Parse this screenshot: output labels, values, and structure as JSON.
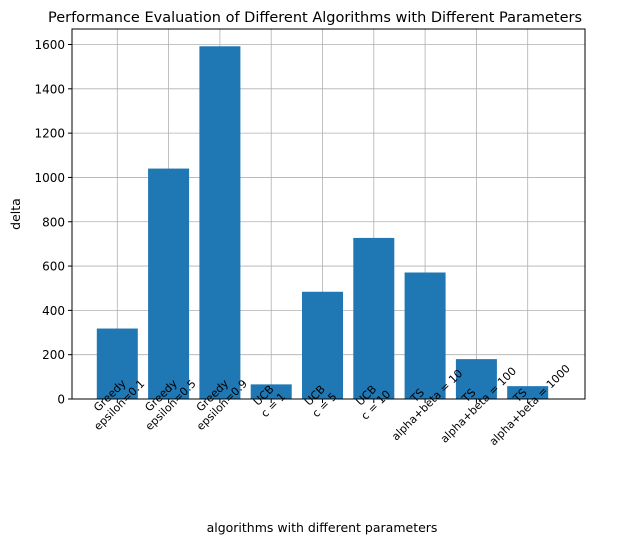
{
  "chart_data": {
    "type": "bar",
    "title": "Performance Evaluation of Different Algorithms with Different Parameters",
    "xlabel": "algorithms with different parameters",
    "ylabel": "delta",
    "categories": [
      [
        "Greedy",
        "epsilon=0.1"
      ],
      [
        "Greedy",
        "epsilon=0.5"
      ],
      [
        "Greedy",
        "epsilon=0.9"
      ],
      [
        "UCB",
        "c = 1"
      ],
      [
        "UCB",
        "c = 5"
      ],
      [
        "UCB",
        "c = 10"
      ],
      [
        "TS",
        "alpha+beta = 10"
      ],
      [
        "TS",
        "alpha+beta = 100"
      ],
      [
        "TS",
        "alpha+beta = 1000"
      ]
    ],
    "values": [
      318,
      1040,
      1592,
      66,
      484,
      727,
      571,
      180,
      58
    ],
    "ylim": [
      0,
      1670
    ],
    "yticks": [
      "0",
      "200",
      "400",
      "600",
      "800",
      "1000",
      "1200",
      "1400",
      "1600"
    ],
    "grid": true,
    "bar_color": "#1f77b4"
  }
}
